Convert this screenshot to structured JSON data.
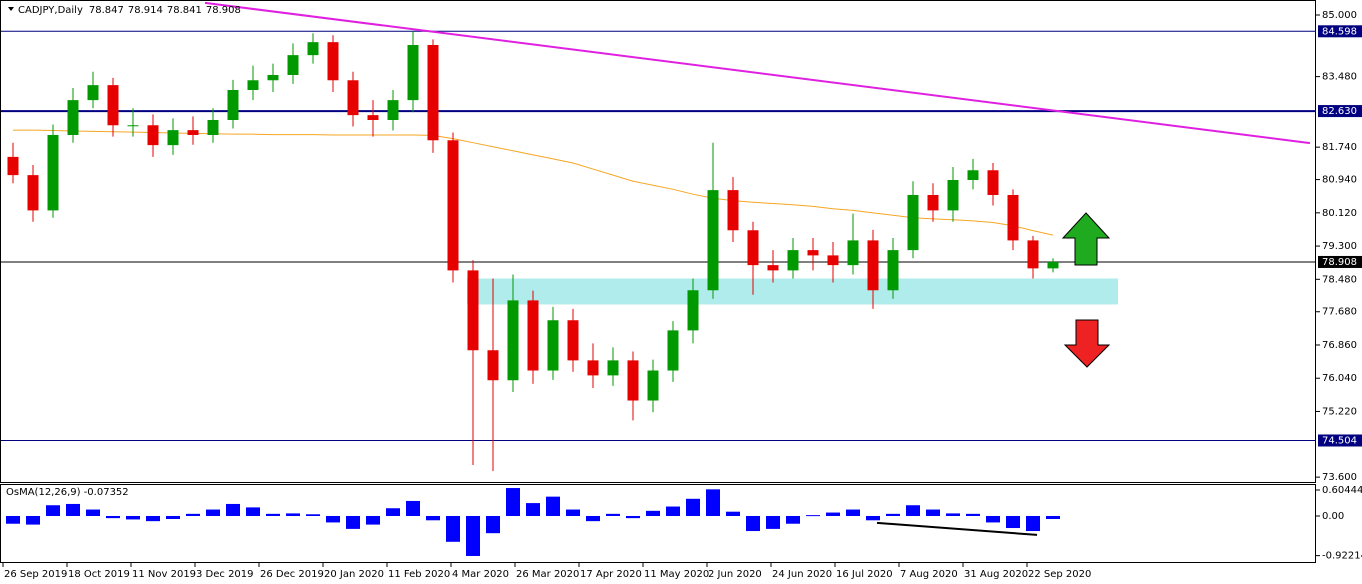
{
  "chart_data": [
    {
      "type": "candlestick",
      "title": "CADJPY,Daily",
      "header_values": [
        78.847,
        78.914,
        78.841,
        78.908
      ],
      "x": [
        2.5,
        7.5,
        12.5,
        17.5,
        22.5,
        27.5,
        32.5,
        37.5,
        42.5,
        47.5,
        52.5,
        57.5,
        62.5,
        67.5,
        72.5,
        77.5,
        82.5,
        87.5,
        92.5,
        97.5,
        102.5,
        107.5,
        112.5,
        117.5,
        122.5,
        127.5,
        132.5,
        137.5,
        142.5,
        147.5,
        152.5,
        157.5,
        162.5,
        167.5,
        172.5,
        177.5,
        182.5,
        187.5,
        192.5,
        197.5,
        202.5,
        207.5,
        212.5,
        217.5,
        222.5,
        227.5,
        232.5,
        237.5,
        242.5,
        247.5,
        252.5,
        257.5,
        262.5
      ],
      "open": [
        81.5,
        81.05,
        80.18,
        82.04,
        82.9,
        83.27,
        82.28,
        82.28,
        81.79,
        82.16,
        82.04,
        82.41,
        83.15,
        83.39,
        83.52,
        84.01,
        84.33,
        83.39,
        82.53,
        82.41,
        82.9,
        84.26,
        81.91,
        78.7,
        76.73,
        75.99,
        77.96,
        76.23,
        77.47,
        76.48,
        76.11,
        76.48,
        75.49,
        76.23,
        77.22,
        78.21,
        80.68,
        79.69,
        78.83,
        78.7,
        79.2,
        79.07,
        78.83,
        79.44,
        78.21,
        79.2,
        80.56,
        80.18,
        80.93,
        81.17,
        80.56,
        79.44,
        78.75
      ],
      "high": [
        81.85,
        81.3,
        82.3,
        83.2,
        83.6,
        83.45,
        82.7,
        82.55,
        82.45,
        82.5,
        82.7,
        83.4,
        83.75,
        83.8,
        84.3,
        84.55,
        84.5,
        83.6,
        82.9,
        83.15,
        84.6,
        84.4,
        82.1,
        78.95,
        78.5,
        78.6,
        78.2,
        77.8,
        77.75,
        76.9,
        76.8,
        76.7,
        76.5,
        77.45,
        78.5,
        81.85,
        81.0,
        79.9,
        79.2,
        79.5,
        79.5,
        79.4,
        80.1,
        79.7,
        79.5,
        80.9,
        80.85,
        81.25,
        81.45,
        81.35,
        80.7,
        79.55,
        79.0
      ],
      "low": [
        80.85,
        79.9,
        80.0,
        81.85,
        82.7,
        82.0,
        82.0,
        81.5,
        81.55,
        81.8,
        81.85,
        82.2,
        82.9,
        83.1,
        83.3,
        83.8,
        83.1,
        82.25,
        82.0,
        82.15,
        82.6,
        81.6,
        78.4,
        73.9,
        73.75,
        75.7,
        75.9,
        76.0,
        76.2,
        75.8,
        75.85,
        75.0,
        75.2,
        75.95,
        76.9,
        78.0,
        79.4,
        78.1,
        78.4,
        78.5,
        78.7,
        78.4,
        78.6,
        77.75,
        78.0,
        79.0,
        79.9,
        79.9,
        80.7,
        80.3,
        79.2,
        78.5,
        78.65
      ],
      "close": [
        81.05,
        80.18,
        82.04,
        82.9,
        83.27,
        82.28,
        82.28,
        81.79,
        82.16,
        82.04,
        82.41,
        83.15,
        83.39,
        83.52,
        84.01,
        84.33,
        83.39,
        82.53,
        82.41,
        82.9,
        84.26,
        81.91,
        78.7,
        76.73,
        75.99,
        77.96,
        76.23,
        77.47,
        76.48,
        76.11,
        76.48,
        75.49,
        76.23,
        77.22,
        78.21,
        80.68,
        79.69,
        78.83,
        78.7,
        79.2,
        79.07,
        78.83,
        79.44,
        78.21,
        79.2,
        80.56,
        80.18,
        80.93,
        81.17,
        80.56,
        79.44,
        78.75,
        78.908
      ],
      "up_color": "#009900",
      "down_color": "#e60000",
      "ma": {
        "color": "#f5a623",
        "values": [
          82.16,
          82.16,
          82.15,
          82.14,
          82.13,
          82.12,
          82.11,
          82.1,
          82.09,
          82.08,
          82.07,
          82.06,
          82.06,
          82.05,
          82.05,
          82.05,
          82.04,
          82.04,
          82.04,
          82.04,
          82.04,
          82.03,
          81.95,
          81.85,
          81.75,
          81.65,
          81.55,
          81.45,
          81.35,
          81.2,
          81.05,
          80.9,
          80.8,
          80.7,
          80.58,
          80.48,
          80.42,
          80.38,
          80.35,
          80.32,
          80.28,
          80.22,
          80.18,
          80.12,
          80.06,
          80.0,
          79.97,
          79.95,
          79.92,
          79.88,
          79.8,
          79.68,
          79.57
        ]
      },
      "levels": [
        {
          "value": 84.598,
          "label": "84.598",
          "color": "#000080"
        },
        {
          "value": 82.63,
          "label": "82.630",
          "color": "#000080",
          "bold": true
        },
        {
          "value": 78.908,
          "label": "78.908",
          "color": "#000000"
        },
        {
          "value": 74.504,
          "label": "74.504",
          "color": "#000080"
        }
      ],
      "trendline": {
        "color": "#e020e0",
        "x": [
          50.5,
          326.75
        ],
        "values": [
          85.3,
          81.84
        ]
      },
      "zone": {
        "color": "#b0ecec",
        "x": [
          116,
          278.75
        ],
        "values": [
          77.86,
          78.5
        ]
      },
      "xlim": [
        -0.75,
        328.25
      ],
      "ylim": [
        73.48,
        85.37
      ],
      "yticks": [
        {
          "value": 85,
          "label": "85.000"
        },
        {
          "value": 83.48,
          "label": "83.480"
        },
        {
          "value": 81.74,
          "label": "81.740"
        },
        {
          "value": 80.94,
          "label": "80.940"
        },
        {
          "value": 80.12,
          "label": "80.120"
        },
        {
          "value": 79.3,
          "label": "79.300"
        },
        {
          "value": 78.48,
          "label": "78.480"
        },
        {
          "value": 77.68,
          "label": "77.680"
        },
        {
          "value": 76.86,
          "label": "76.860"
        },
        {
          "value": 76.04,
          "label": "76.040"
        },
        {
          "value": 75.22,
          "label": "75.220"
        },
        {
          "value": 73.6,
          "label": "73.600"
        }
      ],
      "xticks": [
        {
          "value": 0,
          "label": "26 Sep 2019"
        },
        {
          "value": 16,
          "label": "18 Oct 2019"
        },
        {
          "value": 32,
          "label": "11 Nov 2019"
        },
        {
          "value": 48,
          "label": "3 Dec 2019"
        },
        {
          "value": 64,
          "label": "26 Dec 2019"
        },
        {
          "value": 80,
          "label": "20 Jan 2020"
        },
        {
          "value": 96,
          "label": "11 Feb 2020"
        },
        {
          "value": 112,
          "label": "4 Mar 2020"
        },
        {
          "value": 128,
          "label": "26 Mar 2020"
        },
        {
          "value": 144,
          "label": "17 Apr 2020"
        },
        {
          "value": 160,
          "label": "11 May 2020"
        },
        {
          "value": 176,
          "label": "2 Jun 2020"
        },
        {
          "value": 192,
          "label": "24 Jun 2020"
        },
        {
          "value": 208,
          "label": "16 Jul 2020"
        },
        {
          "value": 224,
          "label": "7 Aug 2020"
        },
        {
          "value": 240,
          "label": "31 Aug 2020"
        },
        {
          "value": 256,
          "label": "22 Sep 2020"
        }
      ],
      "grid": false
    },
    {
      "type": "bar",
      "title": "OsMA(12,26,9) -0.07352",
      "color": "#0000ff",
      "x": [
        2.5,
        7.5,
        12.5,
        17.5,
        22.5,
        27.5,
        32.5,
        37.5,
        42.5,
        47.5,
        52.5,
        57.5,
        62.5,
        67.5,
        72.5,
        77.5,
        82.5,
        87.5,
        92.5,
        97.5,
        102.5,
        107.5,
        112.5,
        117.5,
        122.5,
        127.5,
        132.5,
        137.5,
        142.5,
        147.5,
        152.5,
        157.5,
        162.5,
        167.5,
        172.5,
        177.5,
        182.5,
        187.5,
        192.5,
        197.5,
        202.5,
        207.5,
        212.5,
        217.5,
        222.5,
        227.5,
        232.5,
        237.5,
        242.5,
        247.5,
        252.5,
        257.5,
        262.5
      ],
      "values": [
        -0.18,
        -0.2,
        0.25,
        0.28,
        0.15,
        -0.05,
        -0.08,
        -0.12,
        -0.07,
        0.05,
        0.15,
        0.28,
        0.2,
        0.05,
        0.06,
        0.04,
        -0.15,
        -0.3,
        -0.2,
        0.18,
        0.35,
        -0.1,
        -0.6,
        -0.93,
        -0.4,
        0.65,
        0.3,
        0.45,
        0.15,
        -0.12,
        0.05,
        -0.05,
        0.12,
        0.22,
        0.4,
        0.62,
        0.1,
        -0.35,
        -0.3,
        -0.18,
        0.02,
        0.08,
        0.15,
        -0.1,
        0.05,
        0.25,
        0.15,
        0.06,
        0.05,
        -0.15,
        -0.28,
        -0.35,
        -0.07
      ],
      "trendline": {
        "color": "#000000",
        "x": [
          218.5,
          258.5
        ],
        "values": [
          -0.16,
          -0.44
        ]
      },
      "xlim": [
        -0.75,
        328.25
      ],
      "ylim": [
        -1.07,
        0.744
      ],
      "yticks": [
        0.60444,
        {
          "value": 0,
          "label": "0.00"
        },
        -0.92214
      ],
      "grid": false
    }
  ]
}
